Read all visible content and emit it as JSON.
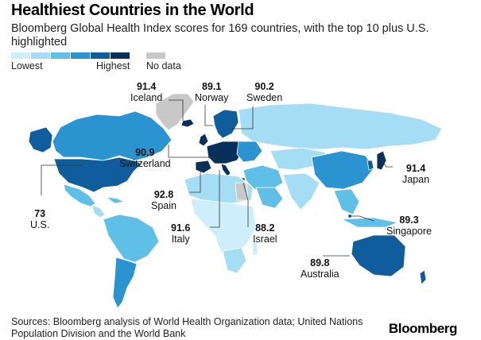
{
  "header": {
    "title": "Healthiest Countries in the World",
    "subtitle": "Bloomberg Global Health Index scores for 169 countries, with the top 10 plus U.S. highlighted"
  },
  "legend": {
    "low_label": "Lowest",
    "high_label": "Highest",
    "nodata_label": "No data",
    "scale_colors": [
      "#cdeefa",
      "#a5def4",
      "#5fbfe6",
      "#2b93cf",
      "#0f5d9c",
      "#08305b"
    ],
    "nodata_color": "#c8c8c8"
  },
  "annotations": [
    {
      "value": "91.4",
      "country": "Iceland"
    },
    {
      "value": "89.1",
      "country": "Norway"
    },
    {
      "value": "90.2",
      "country": "Sweden"
    },
    {
      "value": "90.9",
      "country": "Switzerland"
    },
    {
      "value": "92.8",
      "country": "Spain"
    },
    {
      "value": "91.6",
      "country": "Italy"
    },
    {
      "value": "88.2",
      "country": "Israel"
    },
    {
      "value": "91.4",
      "country": "Japan"
    },
    {
      "value": "89.3",
      "country": "Singapore"
    },
    {
      "value": "89.8",
      "country": "Australia"
    },
    {
      "value": "73",
      "country": "U.S."
    }
  ],
  "footer": {
    "source": "Sources: Bloomberg analysis of World Health Organization data; United Nations Population Division and the World Bank",
    "brand": "Bloomberg"
  }
}
